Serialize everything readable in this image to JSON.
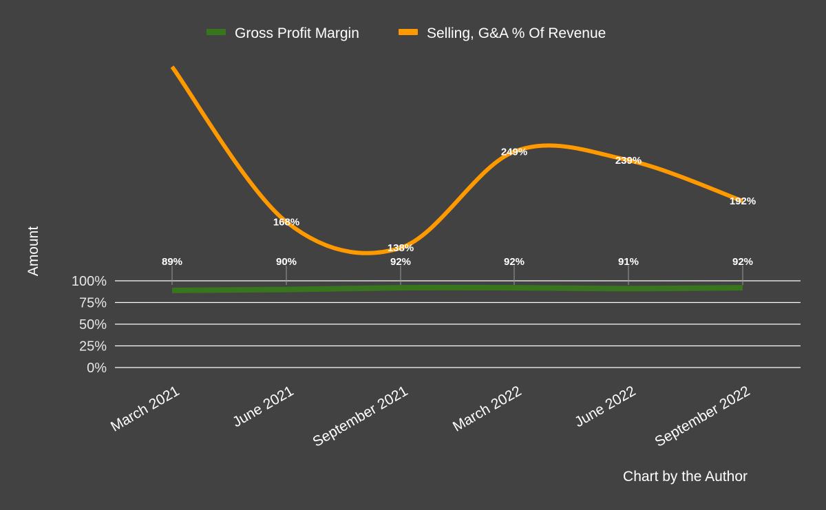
{
  "chart_data": {
    "type": "line",
    "categories": [
      "March 2021",
      "June 2021",
      "September 2021",
      "March 2022",
      "June 2022",
      "September 2022"
    ],
    "series": [
      {
        "name": "Gross Profit Margin",
        "values": [
          89,
          90,
          92,
          92,
          91,
          92
        ],
        "labels": [
          "89%",
          "90%",
          "92%",
          "92%",
          "91%",
          "92%"
        ],
        "color": "#38761d"
      },
      {
        "name": "Selling, G&A % Of Revenue",
        "values": [
          null,
          168,
          138,
          249,
          239,
          192
        ],
        "labels": [
          "",
          "168%",
          "138%",
          "249%",
          "239%",
          "192%"
        ],
        "color": "#ff9900"
      }
    ],
    "ylabel": "Amount",
    "xlabel": "",
    "y_ticks": [
      "0%",
      "25%",
      "50%",
      "75%",
      "100%"
    ],
    "ylim": [
      0,
      100
    ],
    "grid": true,
    "legend_position": "top-center",
    "smooth": true,
    "annotation": "Chart by the Author"
  }
}
